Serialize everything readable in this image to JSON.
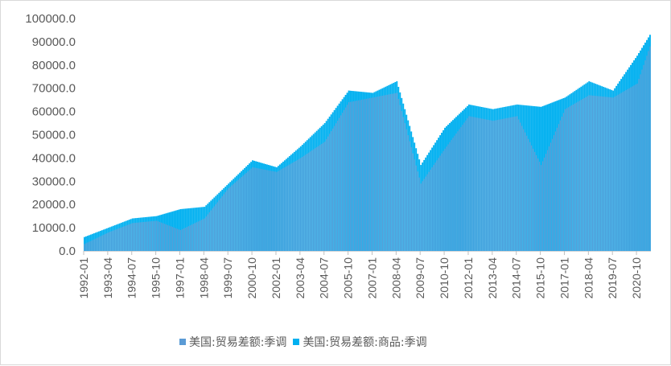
{
  "chart_data": {
    "type": "bar",
    "ylim": [
      0,
      100000
    ],
    "y_ticks": [
      "0.0",
      "10000.0",
      "20000.0",
      "30000.0",
      "40000.0",
      "50000.0",
      "60000.0",
      "70000.0",
      "80000.0",
      "90000.0",
      "100000.0"
    ],
    "x_ticks": [
      "1992-01",
      "1993-04",
      "1994-07",
      "1995-10",
      "1997-01",
      "1998-04",
      "1999-07",
      "2000-10",
      "2002-01",
      "2003-04",
      "2004-07",
      "2005-10",
      "2007-01",
      "2008-04",
      "2009-07",
      "2010-10",
      "2012-01",
      "2013-04",
      "2014-07",
      "2015-10",
      "2017-01",
      "2018-04",
      "2019-07",
      "2020-10"
    ],
    "legend_position": "bottom",
    "grid": false,
    "series": [
      {
        "name": "美国:贸易差额:季调",
        "color": "#5b9bd5",
        "anchors": [
          [
            "1992-01",
            3000
          ],
          [
            "1993-04",
            8000
          ],
          [
            "1994-07",
            12000
          ],
          [
            "1995-10",
            13000
          ],
          [
            "1997-01",
            9000
          ],
          [
            "1998-04",
            14000
          ],
          [
            "1999-07",
            27000
          ],
          [
            "2000-10",
            36000
          ],
          [
            "2002-01",
            34000
          ],
          [
            "2003-04",
            40000
          ],
          [
            "2004-07",
            47000
          ],
          [
            "2005-10",
            64000
          ],
          [
            "2007-01",
            66000
          ],
          [
            "2008-04",
            68000
          ],
          [
            "2009-07",
            29000
          ],
          [
            "2010-10",
            44000
          ],
          [
            "2012-01",
            58000
          ],
          [
            "2013-04",
            56000
          ],
          [
            "2014-07",
            58000
          ],
          [
            "2015-10",
            37000
          ],
          [
            "2017-01",
            61000
          ],
          [
            "2018-04",
            67000
          ],
          [
            "2019-07",
            66000
          ],
          [
            "2020-10",
            72000
          ],
          [
            "2021-06",
            88000
          ]
        ]
      },
      {
        "name": "美国:贸易差额:商品:季调",
        "color": "#00b0f0",
        "anchors": [
          [
            "1992-01",
            6000
          ],
          [
            "1993-04",
            10000
          ],
          [
            "1994-07",
            14000
          ],
          [
            "1995-10",
            15000
          ],
          [
            "1997-01",
            18000
          ],
          [
            "1998-04",
            19000
          ],
          [
            "1999-07",
            29000
          ],
          [
            "2000-10",
            39000
          ],
          [
            "2002-01",
            36000
          ],
          [
            "2003-04",
            45000
          ],
          [
            "2004-07",
            55000
          ],
          [
            "2005-10",
            69000
          ],
          [
            "2007-01",
            68000
          ],
          [
            "2008-04",
            73000
          ],
          [
            "2009-07",
            37000
          ],
          [
            "2010-10",
            53000
          ],
          [
            "2012-01",
            63000
          ],
          [
            "2013-04",
            61000
          ],
          [
            "2014-07",
            63000
          ],
          [
            "2015-10",
            62000
          ],
          [
            "2017-01",
            66000
          ],
          [
            "2018-04",
            73000
          ],
          [
            "2019-07",
            69000
          ],
          [
            "2020-10",
            84000
          ],
          [
            "2021-06",
            93000
          ]
        ]
      }
    ]
  }
}
